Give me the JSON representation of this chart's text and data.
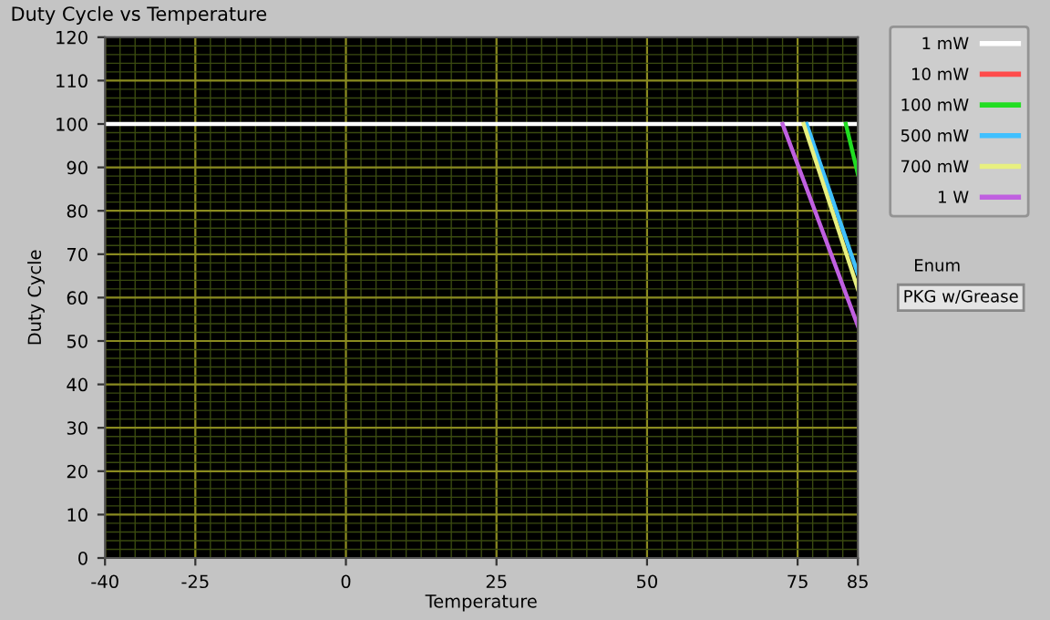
{
  "chart_data": {
    "type": "line",
    "title": "Duty Cycle vs Temperature",
    "xlabel": "Temperature",
    "ylabel": "Duty Cycle",
    "xlim": [
      -40,
      85
    ],
    "ylim": [
      0,
      120
    ],
    "xticks": [
      -40,
      -25,
      0,
      25,
      50,
      75,
      85
    ],
    "yticks": [
      0,
      10,
      20,
      30,
      40,
      50,
      60,
      70,
      80,
      90,
      100,
      110,
      120
    ],
    "grid": true,
    "legend": "top right",
    "marker": "none",
    "line_style": "solid",
    "annotations": [
      "Enum",
      "PKG w/Grease"
    ],
    "series": [
      {
        "name": "1 mW",
        "color": "#ffffff",
        "x": [
          -40,
          85
        ],
        "values": [
          100,
          100
        ]
      },
      {
        "name": "10 mW",
        "color": "#ff4b4b"
      },
      {
        "name": "100 mW",
        "color": "#22dd22",
        "x": [
          83,
          85
        ],
        "values": [
          100,
          88.5
        ]
      },
      {
        "name": "500 mW",
        "color": "#40c0ff",
        "x": [
          76.5,
          85
        ],
        "values": [
          100,
          65.5
        ]
      },
      {
        "name": "700 mW",
        "color": "#e8f080",
        "x": [
          76,
          85
        ],
        "values": [
          100,
          62
        ]
      },
      {
        "name": "1 W",
        "color": "#c060e0",
        "x": [
          72.5,
          85
        ],
        "values": [
          100,
          53.5
        ]
      }
    ]
  }
}
